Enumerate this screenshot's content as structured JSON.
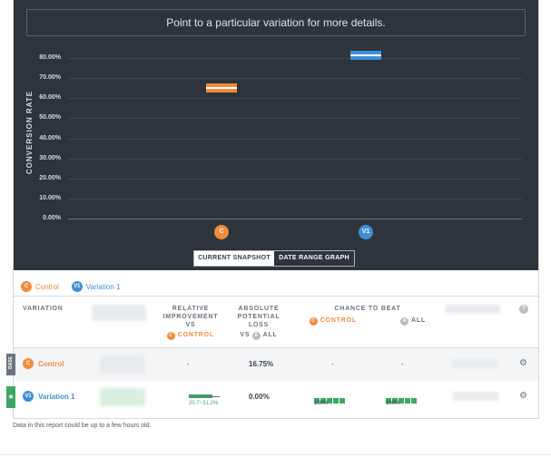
{
  "chart": {
    "hint": "Point to a particular variation for more details.",
    "y_axis_label": "CONVERSION RATE",
    "y_ticks": [
      "80.00%",
      "70.00%",
      "60.00%",
      "50.00%",
      "40.00%",
      "30.00%",
      "20.00%",
      "10.00%",
      "0.00%"
    ],
    "x_badges": [
      {
        "label": "C",
        "color": "#f08a3c"
      },
      {
        "label": "V1",
        "color": "#3f8fd8"
      }
    ]
  },
  "view_toggle": {
    "current_snapshot": "CURRENT SNAPSHOT",
    "date_range_graph": "DATE RANGE GRAPH",
    "active": "date_range_graph"
  },
  "legend": [
    {
      "badge": "C",
      "label": "Control",
      "color": "#f08a3c"
    },
    {
      "badge": "V1",
      "label": "Variation 1",
      "color": "#3f8fd8"
    }
  ],
  "table": {
    "headers": {
      "variation": "VARIATION",
      "relative_line1": "RELATIVE",
      "relative_line2": "IMPROVEMENT",
      "relative_line3": "VS",
      "relative_control": "CONTROL",
      "absolute_line1": "ABSOLUTE",
      "absolute_line2": "POTENTIAL",
      "absolute_line3": "LOSS",
      "absolute_vs": "VS",
      "absolute_all": "ALL",
      "chance": "CHANCE TO BEAT",
      "chance_control": "CONTROL",
      "chance_all": "ALL",
      "help": "?"
    },
    "rows": [
      {
        "tag": "BASE",
        "badge": "C",
        "name": "Control",
        "relative": "-",
        "absolute": "16.75%",
        "chance_control": "-",
        "chance_all": "-"
      },
      {
        "tag": "★",
        "badge": "V1",
        "name": "Variation 1",
        "relative_range": "20.7~31.2%",
        "absolute": "0.00%",
        "chance_control": "100%",
        "chance_all": "100%"
      }
    ]
  },
  "note": "Data in this report could be up to a few hours old.",
  "chart_data": {
    "type": "scatter",
    "categories": [
      "C",
      "V1"
    ],
    "series": [
      {
        "name": "Control",
        "values": [
          65.0
        ]
      },
      {
        "name": "Variation 1",
        "values": [
          81.5
        ]
      }
    ],
    "ylabel": "CONVERSION RATE",
    "ylim": [
      0,
      85
    ],
    "y_tick_values": [
      0,
      10,
      20,
      30,
      40,
      50,
      60,
      70,
      80
    ],
    "grid": true
  }
}
